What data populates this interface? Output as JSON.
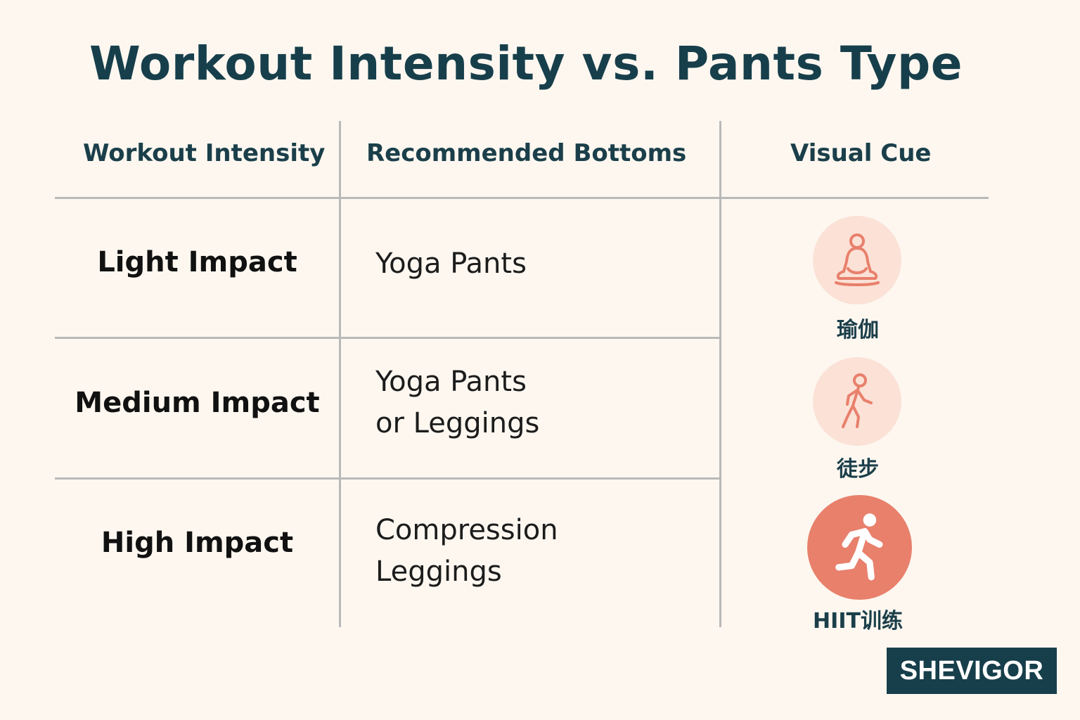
{
  "title": "Workout Intensity vs. Pants Type",
  "headers": {
    "intensity": "Workout Intensity",
    "bottoms": "Recommended Bottoms",
    "cue": "Visual Cue"
  },
  "rows": [
    {
      "intensity": "Light Impact",
      "bottoms": [
        "Yoga Pants"
      ],
      "cue_label": "瑜伽",
      "cue_icon": "yoga-meditation-icon"
    },
    {
      "intensity": "Medium Impact",
      "bottoms": [
        "Yoga Pants",
        "or Leggings"
      ],
      "cue_label": "徒步",
      "cue_icon": "hiking-walker-icon"
    },
    {
      "intensity": "High Impact",
      "bottoms": [
        "Compression",
        "Leggings"
      ],
      "cue_label": "HIIT训练",
      "cue_icon": "running-person-icon"
    }
  ],
  "brand": "SHEVIGOR",
  "colors": {
    "background": "#fdf7f0",
    "title": "#173f4b",
    "grid": "#b9b9b9",
    "icon_light_bg": "#fbe1d6",
    "icon_stroke": "#e8806c",
    "icon_strong_bg": "#e8806c",
    "brand_bg": "#173f4b"
  }
}
